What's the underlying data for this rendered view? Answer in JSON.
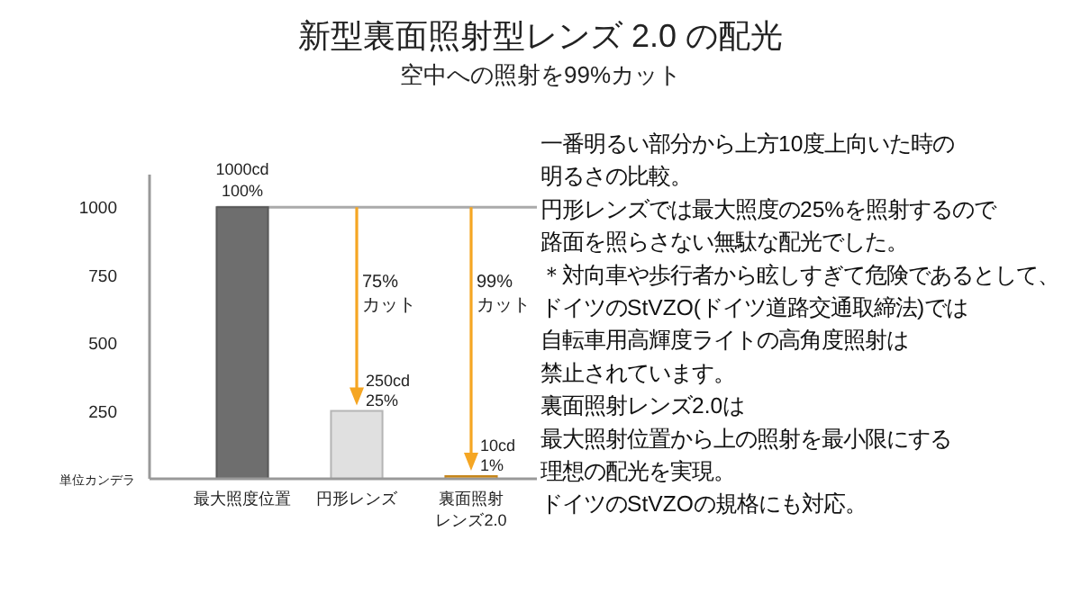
{
  "chart_data": {
    "type": "bar",
    "title": "新型裏面照射型レンズ 2.0 の配光",
    "subtitle": "空中への照射を99%カット",
    "ylabel": "単位カンデラ",
    "categories": [
      "最大照度位置",
      "円形レンズ",
      "裏面照射レンズ2.0"
    ],
    "values": [
      1000,
      250,
      10
    ],
    "colors": [
      "#6e6e6e",
      "#e0e0e0",
      "#f5a623"
    ],
    "value_labels": [
      "1000cd\n100%",
      "250cd\n25%",
      "10cd\n1%"
    ],
    "ylim": [
      0,
      1120
    ],
    "yticks": [
      250,
      500,
      750,
      1000
    ],
    "grid": false,
    "ref_lines": [
      {
        "axis": "y",
        "value": 1000,
        "color": "#aaaaaa"
      }
    ],
    "annotations": [
      "75%\nカット",
      "99%\nカット",
      "一番明るい部分から上方10度上向いた時の",
      "明るさの比較。",
      "円形レンズでは最大照度の25%を照射するので",
      "路面を照らさない無駄な配光でした。",
      "＊対向車や歩行者から眩しすぎて危険であるとして、",
      "ドイツのStVZO(ドイツ道路交通取締法)では",
      "自転車用高輝度ライトの高角度照射は",
      "禁止されています。",
      "裏面照射レンズ2.0は",
      "最大照射位置から上の照射を最小限にする",
      "理想の配光を実現。",
      "ドイツのStVZOの規格にも対応。"
    ]
  }
}
